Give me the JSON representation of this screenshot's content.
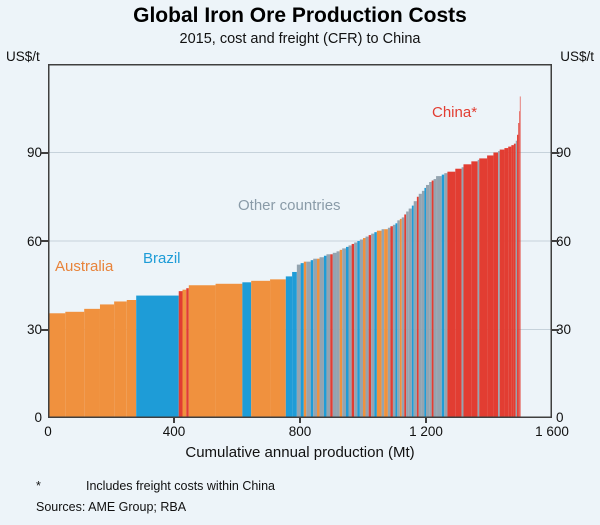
{
  "title": "Global Iron Ore Production Costs",
  "subtitle": "2015, cost and freight (CFR) to China",
  "y_axis_unit": "US$/t",
  "axis_title_x": "Cumulative annual production (Mt)",
  "axes": {
    "y_ticks": [
      "90",
      "60",
      "30",
      "0"
    ],
    "x_ticks": [
      "0",
      "400",
      "800",
      "1 200",
      "1 600"
    ]
  },
  "annotations": {
    "australia": "Australia",
    "brazil": "Brazil",
    "other": "Other countries",
    "china": "China*"
  },
  "footnote_marker": "*",
  "footnote_text": "Includes freight costs within China",
  "sources": "Sources:  AME Group; RBA",
  "chart_data": {
    "type": "bar",
    "subtype": "cost-curve (variable-width sorted bars)",
    "title": "Global Iron Ore Production Costs",
    "subtitle": "2015, cost and freight (CFR) to China",
    "xlabel": "Cumulative annual production (Mt)",
    "ylabel": "US$/t",
    "xlim": [
      0,
      1600
    ],
    "ylim": [
      0,
      120
    ],
    "yticks": [
      0,
      30,
      60,
      90
    ],
    "y_gridlines": [
      30,
      60,
      90
    ],
    "legend": {
      "AU": "Australia",
      "BR": "Brazil",
      "OC": "Other countries",
      "CN": "China* (includes freight costs within China)"
    },
    "colors": {
      "AU": "#F0913E",
      "BR": "#1E9CD7",
      "OC": "#94A4B0",
      "CN": "#E23D32",
      "grid": "#C6D2DB",
      "frame": "#3F3F3F"
    },
    "segments_columns": [
      "country",
      "width_mt",
      "cost_usd_per_t"
    ],
    "segments": [
      [
        "AU",
        55,
        35.5
      ],
      [
        "AU",
        60,
        36
      ],
      [
        "AU",
        50,
        37
      ],
      [
        "AU",
        45,
        38.5
      ],
      [
        "AU",
        40,
        39.5
      ],
      [
        "AU",
        30,
        40
      ],
      [
        "BR",
        135,
        41.5
      ],
      [
        "CN",
        12,
        43
      ],
      [
        "AU",
        12,
        43.5
      ],
      [
        "CN",
        8,
        44
      ],
      [
        "AU",
        85,
        45
      ],
      [
        "AU",
        85,
        45.5
      ],
      [
        "BR",
        28,
        46
      ],
      [
        "AU",
        60,
        46.5
      ],
      [
        "AU",
        50,
        47
      ],
      [
        "BR",
        20,
        48
      ],
      [
        "BR",
        15,
        49.5
      ],
      [
        "OC",
        12,
        52
      ],
      [
        "BR",
        10,
        52.5
      ],
      [
        "AU",
        8,
        53
      ],
      [
        "OC",
        14,
        53
      ],
      [
        "BR",
        8,
        53.5
      ],
      [
        "OC",
        12,
        54
      ],
      [
        "AU",
        8,
        54
      ],
      [
        "OC",
        14,
        54.5
      ],
      [
        "BR",
        8,
        55
      ],
      [
        "OC",
        12,
        55.5
      ],
      [
        "CN",
        8,
        55.5
      ],
      [
        "OC",
        12,
        56
      ],
      [
        "OC",
        10,
        56.5
      ],
      [
        "AU",
        8,
        57
      ],
      [
        "OC",
        12,
        57.5
      ],
      [
        "BR",
        8,
        58
      ],
      [
        "OC",
        10,
        58.5
      ],
      [
        "CN",
        8,
        59
      ],
      [
        "OC",
        10,
        59.5
      ],
      [
        "BR",
        8,
        60
      ],
      [
        "OC",
        10,
        60.5
      ],
      [
        "AU",
        8,
        61
      ],
      [
        "OC",
        10,
        61.5
      ],
      [
        "CN",
        8,
        62
      ],
      [
        "OC",
        10,
        62.5
      ],
      [
        "BR",
        8,
        63
      ],
      [
        "AU",
        15,
        63.5
      ],
      [
        "OC",
        8,
        64
      ],
      [
        "AU",
        12,
        64
      ],
      [
        "OC",
        8,
        64.5
      ],
      [
        "CN",
        8,
        65
      ],
      [
        "OC",
        8,
        65.5
      ],
      [
        "BR",
        6,
        66
      ],
      [
        "OC",
        8,
        67
      ],
      [
        "AU",
        6,
        67.5
      ],
      [
        "OC",
        8,
        68
      ],
      [
        "CN",
        6,
        69
      ],
      [
        "OC",
        8,
        70
      ],
      [
        "OC",
        10,
        71
      ],
      [
        "BR",
        6,
        72
      ],
      [
        "OC",
        10,
        73.5
      ],
      [
        "CN",
        6,
        75
      ],
      [
        "OC",
        10,
        76
      ],
      [
        "OC",
        8,
        77
      ],
      [
        "BR",
        5,
        78
      ],
      [
        "OC",
        10,
        79
      ],
      [
        "OC",
        8,
        80
      ],
      [
        "CN",
        6,
        80.5
      ],
      [
        "OC",
        8,
        81
      ],
      [
        "OC",
        6,
        82
      ],
      [
        "OC",
        12,
        82
      ],
      [
        "BR",
        8,
        82.5
      ],
      [
        "OC",
        10,
        83
      ],
      [
        "CN",
        25,
        83.5
      ],
      [
        "CN",
        20,
        84.5
      ],
      [
        "OC",
        6,
        85
      ],
      [
        "CN",
        25,
        86
      ],
      [
        "CN",
        20,
        87
      ],
      [
        "OC",
        5,
        87.5
      ],
      [
        "CN",
        25,
        88
      ],
      [
        "CN",
        20,
        89
      ],
      [
        "CN",
        15,
        90
      ],
      [
        "OC",
        5,
        90.5
      ],
      [
        "CN",
        15,
        91
      ],
      [
        "CN",
        12,
        91.5
      ],
      [
        "CN",
        10,
        92
      ],
      [
        "CN",
        8,
        92.5
      ],
      [
        "CN",
        6,
        93
      ],
      [
        "OC",
        4,
        94
      ],
      [
        "CN",
        4,
        96
      ],
      [
        "CN",
        3,
        100
      ],
      [
        "CN",
        2,
        104
      ],
      [
        "CN",
        2,
        109
      ]
    ]
  }
}
